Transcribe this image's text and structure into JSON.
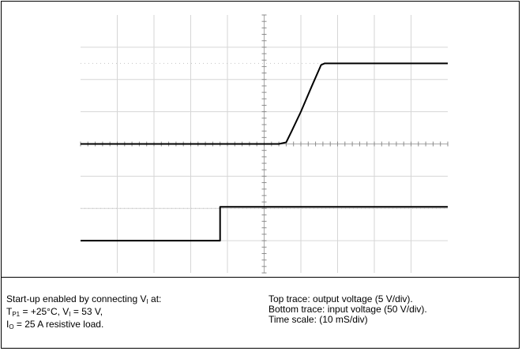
{
  "chart_data": {
    "type": "line",
    "title": "",
    "xlabel": "",
    "ylabel": "",
    "grid": true,
    "divisions": {
      "x": 10,
      "y": 8
    },
    "x_scale": "10 mS/div",
    "xlim": [
      0,
      10
    ],
    "ylim": [
      0,
      8
    ],
    "series": [
      {
        "name": "output voltage",
        "scale": "5 V/div",
        "x": [
          0,
          5.4,
          5.6,
          5.75,
          6.0,
          6.3,
          6.55,
          6.65,
          10
        ],
        "y": [
          4.0,
          4.0,
          4.05,
          4.4,
          5.0,
          5.8,
          6.45,
          6.5,
          6.5
        ]
      },
      {
        "name": "input voltage",
        "scale": "50 V/div",
        "x": [
          0,
          3.8,
          3.8,
          10
        ],
        "y": [
          1.0,
          1.0,
          2.05,
          2.05
        ]
      }
    ]
  },
  "caption_left": {
    "line1_text": "Start-up enabled by connecting  V",
    "line1_sub": "I",
    "line1_end": " at:",
    "line2_a": "T",
    "line2_a_sub": "P1",
    "line2_b": " = +25°C, V",
    "line2_b_sub": "I",
    "line2_c": " =  53  V,",
    "line3_a": "I",
    "line3_a_sub": "O",
    "line3_b": " = 25 A resistive load."
  },
  "caption_right": {
    "line1": "Top trace: output  voltage  (5 V/div).",
    "line2": "Bottom trace: input voltage (50 V/div).",
    "line3": "Time scale: (10 mS/div)"
  }
}
